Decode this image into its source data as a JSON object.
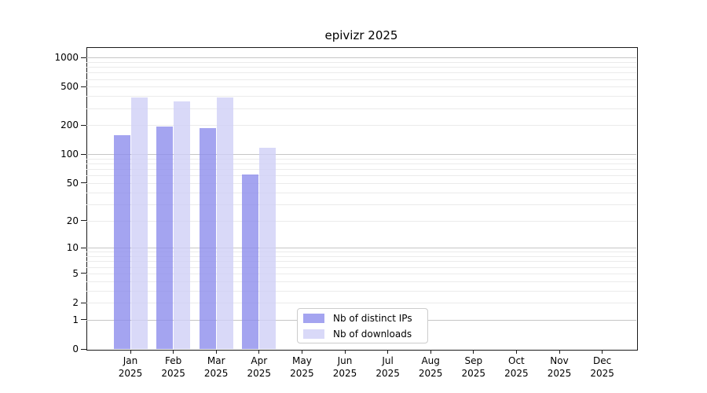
{
  "chart_data": {
    "type": "bar",
    "title": "epivizr 2025",
    "categories": [
      "Jan",
      "Feb",
      "Mar",
      "Apr",
      "May",
      "Jun",
      "Jul",
      "Aug",
      "Sep",
      "Oct",
      "Nov",
      "Dec"
    ],
    "year": "2025",
    "series": [
      {
        "name": "Nb of distinct IPs",
        "color": "#a4a4f0",
        "values": [
          158,
          194,
          186,
          61,
          0,
          0,
          0,
          0,
          0,
          0,
          0,
          0
        ]
      },
      {
        "name": "Nb of downloads",
        "color": "#d9d9f8",
        "values": [
          385,
          350,
          385,
          117,
          0,
          0,
          0,
          0,
          0,
          0,
          0,
          0
        ]
      }
    ],
    "yscale": "log10(1+x)",
    "yticks": [
      0,
      1,
      2,
      5,
      10,
      20,
      50,
      100,
      200,
      500,
      1000
    ],
    "ylim": [
      0,
      1280
    ],
    "xlabel": "",
    "ylabel": "",
    "grid": {
      "enabled": true,
      "major_decades": [
        1,
        10,
        100,
        1000
      ],
      "major_color": "#c6c6c6",
      "minor_color": "#ebebeb"
    },
    "legend_position": "lower-center",
    "bar_alpha": 0.8,
    "axis_color": "#1a1a1a",
    "background_color": "#ffffff"
  }
}
